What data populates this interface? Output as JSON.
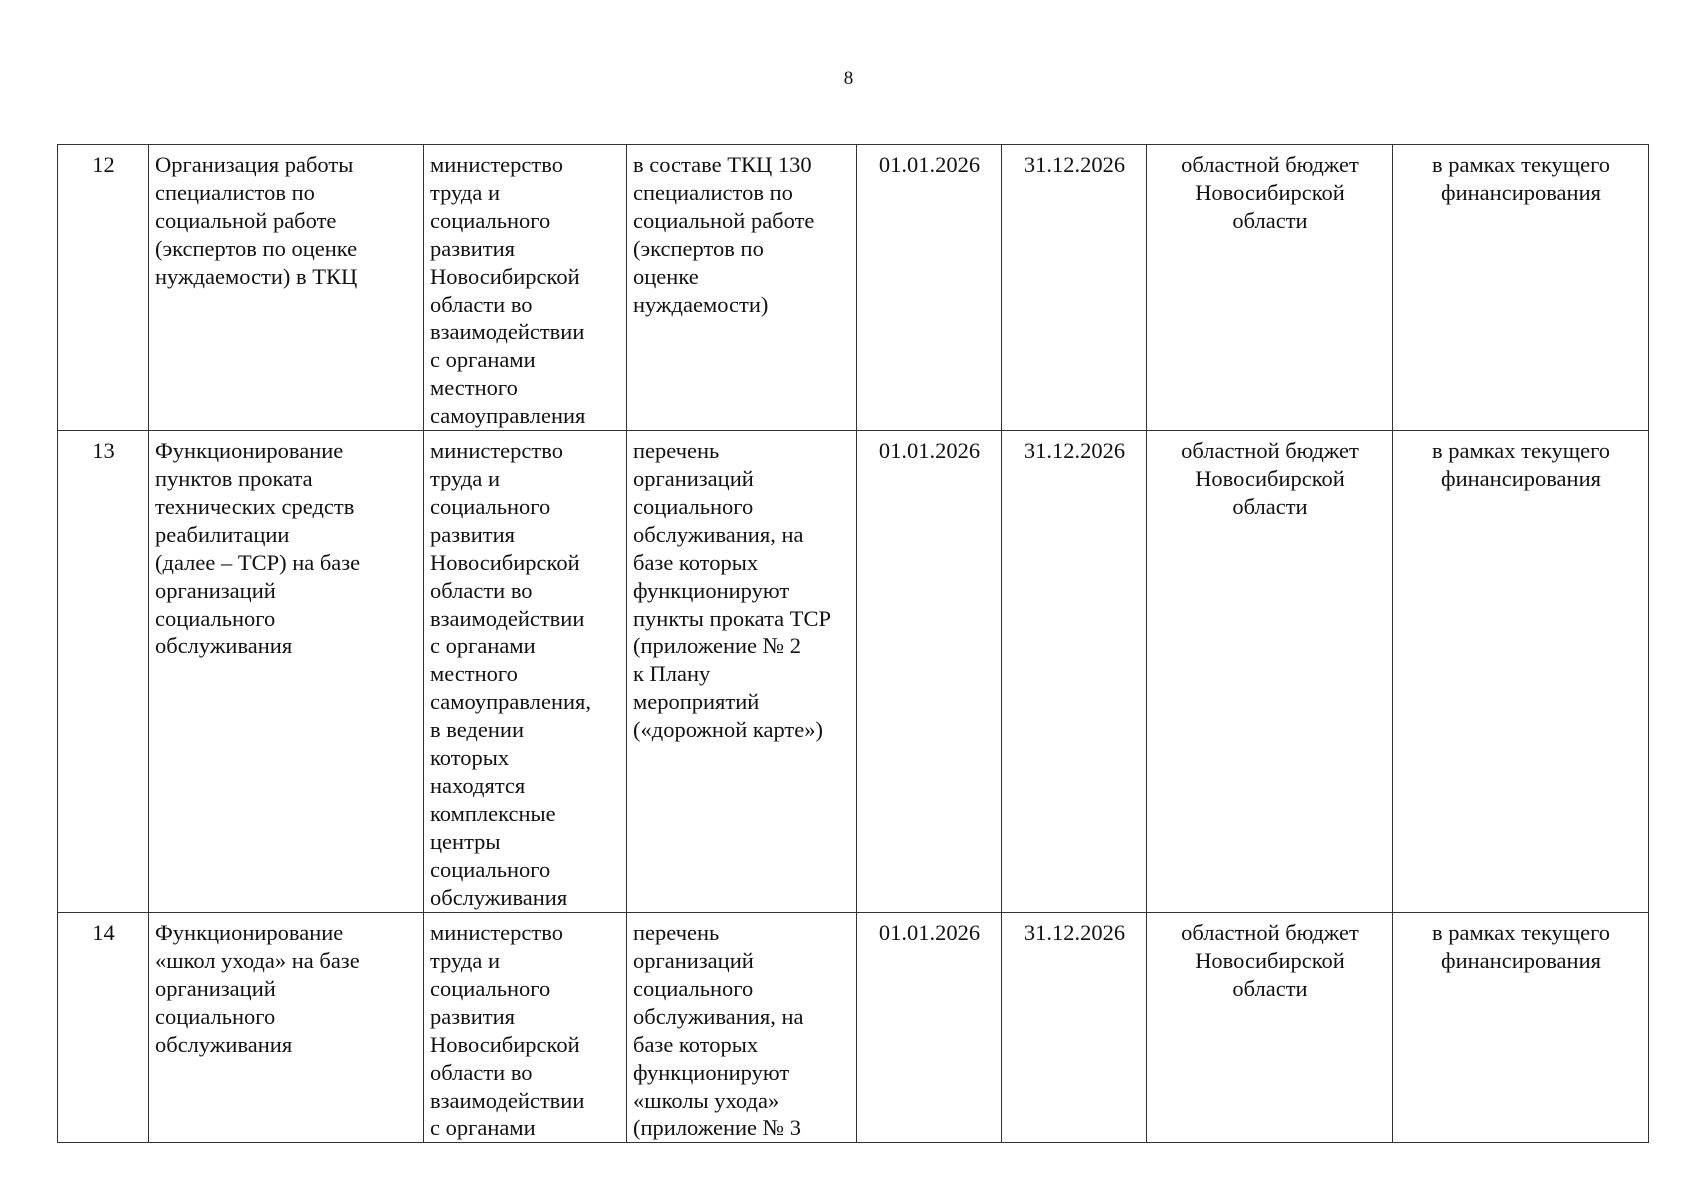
{
  "page_number": "8",
  "rows": [
    {
      "num": "12",
      "name": "Организация работы\nспециалистов по\nсоциальной работе\n(экспертов по оценке\nнуждаемости) в ТКЦ",
      "responsible": "министерство\nтруда и\nсоциального\nразвития\nНовосибирской\nобласти во\nвзаимодействии\nс органами\nместного\nсамоуправления",
      "result": "в составе ТКЦ 130\nспециалистов по\nсоциальной работе\n(экспертов по\nоценке\nнуждаемости)",
      "start": "01.01.2026",
      "end": "31.12.2026",
      "source": "областной бюджет\nНовосибирской\nобласти",
      "funding": "в рамках текущего\nфинансирования"
    },
    {
      "num": "13",
      "name": "Функционирование\nпунктов проката\nтехнических средств\nреабилитации\n(далее – ТСР) на базе\nорганизаций\nсоциального\nобслуживания",
      "responsible": "министерство\nтруда и\nсоциального\nразвития\nНовосибирской\nобласти во\nвзаимодействии\nс органами\nместного\nсамоуправления,\nв ведении\nкоторых\nнаходятся\nкомплексные\nцентры\nсоциального\nобслуживания",
      "result": "перечень\nорганизаций\nсоциального\nобслуживания, на\nбазе которых\nфункционируют\nпункты проката ТСР\n(приложение № 2\nк Плану\nмероприятий\n(«дорожной карте»)",
      "start": "01.01.2026",
      "end": "31.12.2026",
      "source": "областной бюджет\nНовосибирской\nобласти",
      "funding": "в рамках текущего\nфинансирования"
    },
    {
      "num": "14",
      "name": "Функционирование\n«школ ухода» на базе\nорганизаций\nсоциального\nобслуживания",
      "responsible": "министерство\nтруда и\nсоциального\nразвития\nНовосибирской\nобласти во\nвзаимодействии\nс органами",
      "result": "перечень\nорганизаций\nсоциального\nобслуживания, на\nбазе которых\nфункционируют\n«школы ухода»\n(приложение № 3",
      "start": "01.01.2026",
      "end": "31.12.2026",
      "source": "областной бюджет\nНовосибирской\nобласти",
      "funding": "в рамках текущего\nфинансирования"
    }
  ]
}
